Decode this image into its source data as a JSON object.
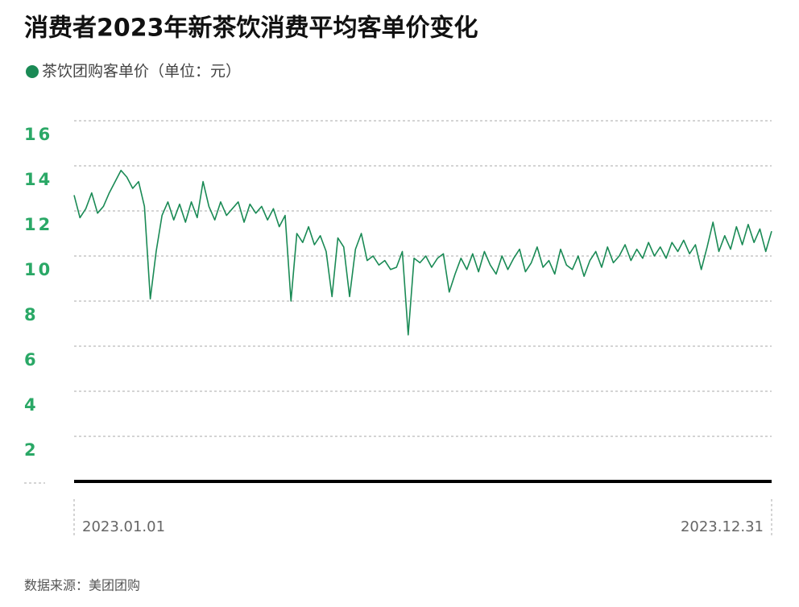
{
  "chart_data": {
    "type": "line",
    "title": "消费者2023年新茶饮消费平均客单价变化",
    "subtitle": "茶饮团购客单价（单位：元）",
    "source": "数据来源：美团团购",
    "categories": [
      "2023.01.01",
      null,
      null,
      null,
      null,
      null,
      null,
      null,
      null,
      null,
      null,
      null,
      null,
      null,
      null,
      null,
      null,
      null,
      null,
      null,
      null,
      null,
      null,
      null,
      null,
      null,
      null,
      null,
      null,
      null,
      null,
      null,
      null,
      null,
      null,
      null,
      null,
      null,
      null,
      null,
      null,
      null,
      null,
      null,
      null,
      null,
      null,
      null,
      null,
      null,
      null,
      null,
      null,
      null,
      null,
      null,
      null,
      null,
      null,
      null,
      null,
      null,
      null,
      null,
      null,
      null,
      null,
      null,
      null,
      null,
      null,
      null,
      null,
      null,
      null,
      null,
      null,
      null,
      null,
      null,
      null,
      null,
      null,
      null,
      null,
      null,
      null,
      null,
      null,
      null,
      null,
      null,
      null,
      null,
      null,
      null,
      null,
      null,
      null,
      null,
      null,
      null,
      null,
      null,
      null,
      null,
      null,
      null,
      null,
      null,
      null,
      null,
      null,
      null,
      null,
      null,
      null,
      null,
      null,
      "2023.12.31"
    ],
    "series": [
      {
        "name": "茶饮团购客单价",
        "color": "#1a8a55",
        "values": [
          12.7,
          11.7,
          12.1,
          12.8,
          11.9,
          12.2,
          12.8,
          13.3,
          13.8,
          13.5,
          13.0,
          13.3,
          12.2,
          8.1,
          10.2,
          11.8,
          12.4,
          11.6,
          12.3,
          11.5,
          12.4,
          11.7,
          13.3,
          12.2,
          11.6,
          12.4,
          11.8,
          12.1,
          12.4,
          11.5,
          12.3,
          11.9,
          12.2,
          11.6,
          12.1,
          11.3,
          11.8,
          8.0,
          11.0,
          10.6,
          11.3,
          10.5,
          10.9,
          10.2,
          8.2,
          10.8,
          10.4,
          8.2,
          10.3,
          11.0,
          9.8,
          10.0,
          9.6,
          9.8,
          9.4,
          9.5,
          10.2,
          6.5,
          9.9,
          9.7,
          10.0,
          9.5,
          9.9,
          10.1,
          8.4,
          9.2,
          9.9,
          9.4,
          10.1,
          9.3,
          10.2,
          9.6,
          9.2,
          10.0,
          9.4,
          9.9,
          10.3,
          9.3,
          9.7,
          10.4,
          9.5,
          9.8,
          9.2,
          10.3,
          9.6,
          9.4,
          10.0,
          9.1,
          9.8,
          10.2,
          9.5,
          10.4,
          9.7,
          10.0,
          10.5,
          9.8,
          10.3,
          9.9,
          10.6,
          10.0,
          10.4,
          9.9,
          10.6,
          10.2,
          10.7,
          10.1,
          10.5,
          9.4,
          10.4,
          11.5,
          10.2,
          10.9,
          10.3,
          11.3,
          10.5,
          11.4,
          10.6,
          11.2,
          10.2,
          11.1
        ]
      }
    ],
    "ylim": [
      0,
      16
    ],
    "yticks": [
      2,
      4,
      6,
      8,
      10,
      12,
      14,
      16
    ],
    "grid": true
  }
}
